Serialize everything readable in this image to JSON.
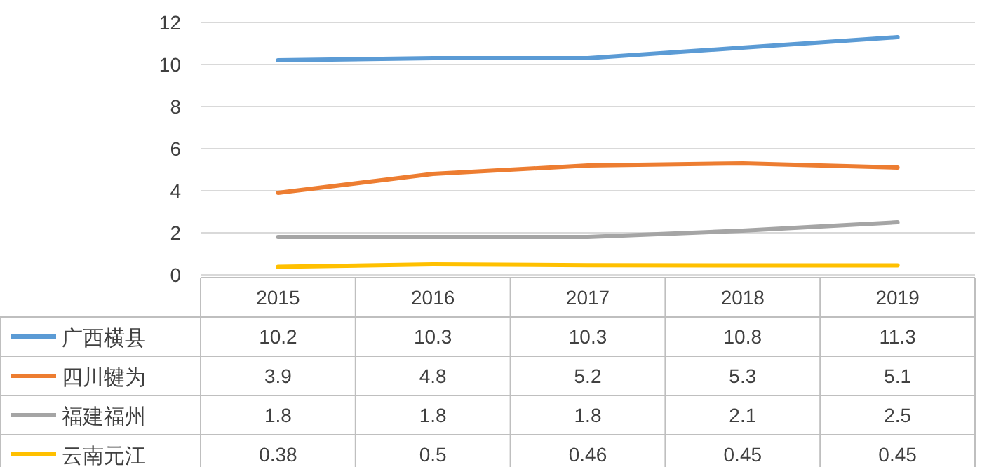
{
  "chart_data": {
    "type": "line",
    "categories": [
      "2015",
      "2016",
      "2017",
      "2018",
      "2019"
    ],
    "series": [
      {
        "name": "广西横县",
        "color": "#5b9bd5",
        "values": [
          10.2,
          10.3,
          10.3,
          10.8,
          11.3
        ]
      },
      {
        "name": "四川犍为",
        "color": "#ed7d31",
        "values": [
          3.9,
          4.8,
          5.2,
          5.3,
          5.1
        ]
      },
      {
        "name": "福建福州",
        "color": "#a5a5a5",
        "values": [
          1.8,
          1.8,
          1.8,
          2.1,
          2.5
        ]
      },
      {
        "name": "云南元江",
        "color": "#ffc000",
        "values": [
          0.38,
          0.5,
          0.46,
          0.45,
          0.45
        ]
      }
    ],
    "ylim": [
      0,
      12
    ],
    "yticks": [
      0,
      2,
      4,
      6,
      8,
      10,
      12
    ],
    "grid": "y",
    "legend": "bottom",
    "data_labels": true,
    "marker": "none",
    "line_style": "solid"
  }
}
